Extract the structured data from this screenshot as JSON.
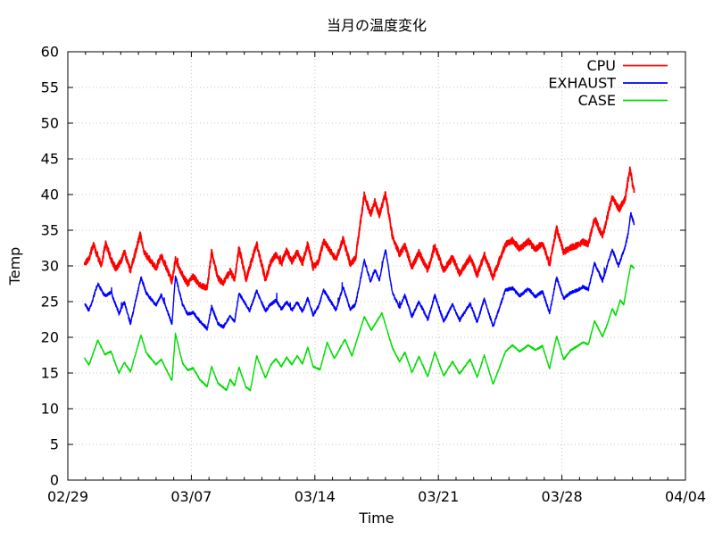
{
  "chart_data": {
    "type": "line",
    "title": "当月の温度変化",
    "xlabel": "Time",
    "ylabel": "Temp",
    "x_axis": {
      "range_days": [
        0,
        35
      ],
      "major_ticks": [
        {
          "day": 0,
          "label": "02/29"
        },
        {
          "day": 7,
          "label": "03/07"
        },
        {
          "day": 14,
          "label": "03/14"
        },
        {
          "day": 21,
          "label": "03/21"
        },
        {
          "day": 28,
          "label": "03/28"
        },
        {
          "day": 35,
          "label": "04/04"
        }
      ],
      "minor_tick_interval_days": 1
    },
    "y_axis": {
      "range": [
        0,
        60
      ],
      "ticks": [
        0,
        5,
        10,
        15,
        20,
        25,
        30,
        35,
        40,
        45,
        50,
        55,
        60
      ]
    },
    "grid": {
      "visible": true,
      "style": "dotted",
      "color": "#c4c4c4"
    },
    "colors": {
      "axis": "#000000",
      "text": "#000000",
      "background": "#ffffff"
    },
    "legend": {
      "position": "top-right-inside",
      "box": false
    },
    "series": [
      {
        "name": "CPU",
        "color": "#ff0000",
        "line_width": 1.8,
        "jitter": 0.42,
        "spike": 0.5,
        "points": [
          [
            0.95,
            30.4
          ],
          [
            1.2,
            31.0
          ],
          [
            1.45,
            33.0
          ],
          [
            1.7,
            31.2
          ],
          [
            1.9,
            30.1
          ],
          [
            2.15,
            33.2
          ],
          [
            2.45,
            31.0
          ],
          [
            2.7,
            29.6
          ],
          [
            3.0,
            30.6
          ],
          [
            3.2,
            32.0
          ],
          [
            3.55,
            29.3
          ],
          [
            4.1,
            34.4
          ],
          [
            4.35,
            31.8
          ],
          [
            4.6,
            31.0
          ],
          [
            5.0,
            29.7
          ],
          [
            5.3,
            31.5
          ],
          [
            5.9,
            27.8
          ],
          [
            6.1,
            30.9
          ],
          [
            6.5,
            28.7
          ],
          [
            6.8,
            27.5
          ],
          [
            7.1,
            28.5
          ],
          [
            7.5,
            27.3
          ],
          [
            7.9,
            26.9
          ],
          [
            8.15,
            32.0
          ],
          [
            8.5,
            28.3
          ],
          [
            8.8,
            27.6
          ],
          [
            9.2,
            29.3
          ],
          [
            9.45,
            28.0
          ],
          [
            9.7,
            32.5
          ],
          [
            10.1,
            28.1
          ],
          [
            10.7,
            33.1
          ],
          [
            11.2,
            28.1
          ],
          [
            11.5,
            30.5
          ],
          [
            11.8,
            31.6
          ],
          [
            12.1,
            30.3
          ],
          [
            12.4,
            32.2
          ],
          [
            12.7,
            30.6
          ],
          [
            13.0,
            31.9
          ],
          [
            13.3,
            30.4
          ],
          [
            13.6,
            33.1
          ],
          [
            13.9,
            29.8
          ],
          [
            14.2,
            30.6
          ],
          [
            14.5,
            33.5
          ],
          [
            15.2,
            30.9
          ],
          [
            15.6,
            33.8
          ],
          [
            16.0,
            30.3
          ],
          [
            16.3,
            31.0
          ],
          [
            16.8,
            40.0
          ],
          [
            17.15,
            37.2
          ],
          [
            17.4,
            39.0
          ],
          [
            17.65,
            37.1
          ],
          [
            18.0,
            40.1
          ],
          [
            18.4,
            34.1
          ],
          [
            18.8,
            31.6
          ],
          [
            19.1,
            32.9
          ],
          [
            19.5,
            29.8
          ],
          [
            19.9,
            31.9
          ],
          [
            20.4,
            29.4
          ],
          [
            20.8,
            32.7
          ],
          [
            21.3,
            29.4
          ],
          [
            21.8,
            31.2
          ],
          [
            22.2,
            28.9
          ],
          [
            22.8,
            31.2
          ],
          [
            23.2,
            28.7
          ],
          [
            23.6,
            31.6
          ],
          [
            24.1,
            28.4
          ],
          [
            24.8,
            33.0
          ],
          [
            25.2,
            33.6
          ],
          [
            25.6,
            32.4
          ],
          [
            26.1,
            33.5
          ],
          [
            26.5,
            32.3
          ],
          [
            26.9,
            33.2
          ],
          [
            27.3,
            30.2
          ],
          [
            27.7,
            35.3
          ],
          [
            28.1,
            31.9
          ],
          [
            28.5,
            32.6
          ],
          [
            28.9,
            32.9
          ],
          [
            29.2,
            33.4
          ],
          [
            29.5,
            33.0
          ],
          [
            29.85,
            36.7
          ],
          [
            30.3,
            34.1
          ],
          [
            30.85,
            39.6
          ],
          [
            31.25,
            37.9
          ],
          [
            31.6,
            39.5
          ],
          [
            31.85,
            43.8
          ],
          [
            32.0,
            41.5
          ],
          [
            32.1,
            40.3
          ]
        ]
      },
      {
        "name": "EXHAUST",
        "color": "#0000ff",
        "line_width": 1.4,
        "jitter": 0.22,
        "spike": 1.1,
        "points": [
          [
            0.95,
            24.8
          ],
          [
            1.2,
            23.7
          ],
          [
            1.7,
            27.5
          ],
          [
            2.1,
            25.8
          ],
          [
            2.45,
            26.3
          ],
          [
            2.9,
            23.3
          ],
          [
            3.2,
            25.0
          ],
          [
            3.55,
            21.9
          ],
          [
            4.15,
            28.4
          ],
          [
            4.45,
            26.2
          ],
          [
            5.0,
            24.5
          ],
          [
            5.3,
            26.0
          ],
          [
            5.9,
            21.9
          ],
          [
            6.1,
            28.6
          ],
          [
            6.5,
            24.6
          ],
          [
            6.8,
            23.2
          ],
          [
            7.1,
            23.5
          ],
          [
            7.5,
            22.2
          ],
          [
            7.9,
            21.2
          ],
          [
            8.15,
            24.3
          ],
          [
            8.5,
            22.0
          ],
          [
            8.8,
            21.4
          ],
          [
            9.2,
            23.0
          ],
          [
            9.45,
            22.2
          ],
          [
            9.7,
            26.2
          ],
          [
            10.3,
            23.7
          ],
          [
            10.7,
            26.5
          ],
          [
            11.2,
            23.7
          ],
          [
            11.5,
            24.6
          ],
          [
            11.8,
            25.2
          ],
          [
            12.1,
            23.9
          ],
          [
            12.4,
            25.0
          ],
          [
            12.7,
            23.8
          ],
          [
            13.0,
            24.9
          ],
          [
            13.3,
            23.6
          ],
          [
            13.6,
            25.5
          ],
          [
            13.9,
            23.1
          ],
          [
            14.2,
            24.3
          ],
          [
            14.5,
            26.6
          ],
          [
            15.2,
            23.8
          ],
          [
            15.6,
            27.1
          ],
          [
            16.0,
            23.9
          ],
          [
            16.3,
            24.6
          ],
          [
            16.8,
            30.8
          ],
          [
            17.15,
            27.8
          ],
          [
            17.4,
            29.5
          ],
          [
            17.65,
            28.0
          ],
          [
            18.0,
            32.3
          ],
          [
            18.4,
            26.2
          ],
          [
            18.8,
            24.1
          ],
          [
            19.1,
            25.9
          ],
          [
            19.5,
            22.9
          ],
          [
            19.9,
            25.0
          ],
          [
            20.4,
            22.5
          ],
          [
            20.8,
            25.9
          ],
          [
            21.3,
            22.2
          ],
          [
            21.8,
            24.6
          ],
          [
            22.2,
            22.4
          ],
          [
            22.8,
            24.7
          ],
          [
            23.2,
            22.1
          ],
          [
            23.6,
            25.4
          ],
          [
            24.1,
            21.5
          ],
          [
            24.8,
            26.6
          ],
          [
            25.2,
            26.9
          ],
          [
            25.6,
            25.8
          ],
          [
            26.1,
            26.8
          ],
          [
            26.5,
            25.7
          ],
          [
            26.9,
            26.4
          ],
          [
            27.3,
            23.4
          ],
          [
            27.7,
            28.4
          ],
          [
            28.1,
            25.4
          ],
          [
            28.5,
            26.3
          ],
          [
            28.9,
            26.6
          ],
          [
            29.2,
            27.1
          ],
          [
            29.5,
            26.7
          ],
          [
            29.85,
            30.4
          ],
          [
            30.3,
            27.9
          ],
          [
            30.85,
            32.3
          ],
          [
            31.2,
            30.0
          ],
          [
            31.6,
            32.8
          ],
          [
            31.75,
            34.5
          ],
          [
            31.9,
            37.4
          ],
          [
            32.1,
            35.8
          ]
        ]
      },
      {
        "name": "CASE",
        "color": "#00dc00",
        "line_width": 1.4,
        "jitter": 0.1,
        "spike": 0,
        "points": [
          [
            0.95,
            17.1
          ],
          [
            1.2,
            16.1
          ],
          [
            1.7,
            19.6
          ],
          [
            2.1,
            17.6
          ],
          [
            2.45,
            18.0
          ],
          [
            2.9,
            15.0
          ],
          [
            3.2,
            16.5
          ],
          [
            3.55,
            15.2
          ],
          [
            4.15,
            20.3
          ],
          [
            4.45,
            17.8
          ],
          [
            5.0,
            16.2
          ],
          [
            5.3,
            16.9
          ],
          [
            5.9,
            13.9
          ],
          [
            6.1,
            20.5
          ],
          [
            6.5,
            16.4
          ],
          [
            6.8,
            15.4
          ],
          [
            7.1,
            15.7
          ],
          [
            7.5,
            14.0
          ],
          [
            7.9,
            13.1
          ],
          [
            8.15,
            15.9
          ],
          [
            8.5,
            13.6
          ],
          [
            9.0,
            12.6
          ],
          [
            9.2,
            14.1
          ],
          [
            9.45,
            13.2
          ],
          [
            9.7,
            15.8
          ],
          [
            10.1,
            13.0
          ],
          [
            10.35,
            12.6
          ],
          [
            10.7,
            17.4
          ],
          [
            11.2,
            14.3
          ],
          [
            11.5,
            16.1
          ],
          [
            11.8,
            17.0
          ],
          [
            12.1,
            15.9
          ],
          [
            12.4,
            17.2
          ],
          [
            12.7,
            16.2
          ],
          [
            13.0,
            17.4
          ],
          [
            13.3,
            16.3
          ],
          [
            13.6,
            18.6
          ],
          [
            13.9,
            15.9
          ],
          [
            14.3,
            15.5
          ],
          [
            14.7,
            19.3
          ],
          [
            15.1,
            17.0
          ],
          [
            15.7,
            19.7
          ],
          [
            16.1,
            17.4
          ],
          [
            16.8,
            22.9
          ],
          [
            17.2,
            21.0
          ],
          [
            17.8,
            23.4
          ],
          [
            18.4,
            18.5
          ],
          [
            18.8,
            16.6
          ],
          [
            19.1,
            17.9
          ],
          [
            19.5,
            15.1
          ],
          [
            19.9,
            17.3
          ],
          [
            20.4,
            14.5
          ],
          [
            20.8,
            17.9
          ],
          [
            21.3,
            14.6
          ],
          [
            21.8,
            16.6
          ],
          [
            22.2,
            14.9
          ],
          [
            22.8,
            16.9
          ],
          [
            23.2,
            14.4
          ],
          [
            23.6,
            17.5
          ],
          [
            24.1,
            13.4
          ],
          [
            24.8,
            18.0
          ],
          [
            25.2,
            18.9
          ],
          [
            25.6,
            18.0
          ],
          [
            26.1,
            18.9
          ],
          [
            26.5,
            18.2
          ],
          [
            26.9,
            18.8
          ],
          [
            27.3,
            15.6
          ],
          [
            27.7,
            20.2
          ],
          [
            28.1,
            16.9
          ],
          [
            28.5,
            18.2
          ],
          [
            28.9,
            18.8
          ],
          [
            29.2,
            19.3
          ],
          [
            29.5,
            19.0
          ],
          [
            29.85,
            22.3
          ],
          [
            30.3,
            20.1
          ],
          [
            30.6,
            22.0
          ],
          [
            30.85,
            24.0
          ],
          [
            31.05,
            23.1
          ],
          [
            31.3,
            25.2
          ],
          [
            31.5,
            24.6
          ],
          [
            31.9,
            30.1
          ],
          [
            32.1,
            29.7
          ]
        ]
      }
    ]
  }
}
